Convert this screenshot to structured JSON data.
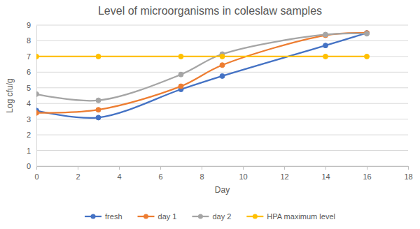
{
  "chart_data": {
    "type": "line",
    "title": "Level of microorganisms in coleslaw samples",
    "x_label": "Day",
    "y_label": "Log cfu/g",
    "x": [
      0,
      3,
      7,
      9,
      14,
      16
    ],
    "series": [
      {
        "name": "fresh",
        "color": "#4472c4",
        "values": [
          3.55,
          3.1,
          4.9,
          5.75,
          7.7,
          8.5
        ]
      },
      {
        "name": "day 1",
        "color": "#ed7d31",
        "values": [
          3.4,
          3.6,
          5.1,
          6.45,
          8.35,
          8.5
        ]
      },
      {
        "name": "day 2",
        "color": "#a5a5a5",
        "values": [
          4.6,
          4.2,
          5.85,
          7.15,
          8.4,
          8.45
        ]
      },
      {
        "name": "HPA maximum level",
        "color": "#ffc000",
        "values": [
          7,
          7,
          7,
          7,
          7,
          7
        ]
      }
    ],
    "xlim": [
      0,
      18
    ],
    "xticks": [
      0,
      2,
      4,
      6,
      8,
      10,
      12,
      14,
      16,
      18
    ],
    "ylim": [
      0,
      9
    ],
    "yticks": [
      0,
      1,
      2,
      3,
      4,
      5,
      6,
      7,
      8,
      9
    ],
    "grid": true,
    "legend": "bottom",
    "marker": "circle",
    "line_style": "smooth"
  }
}
